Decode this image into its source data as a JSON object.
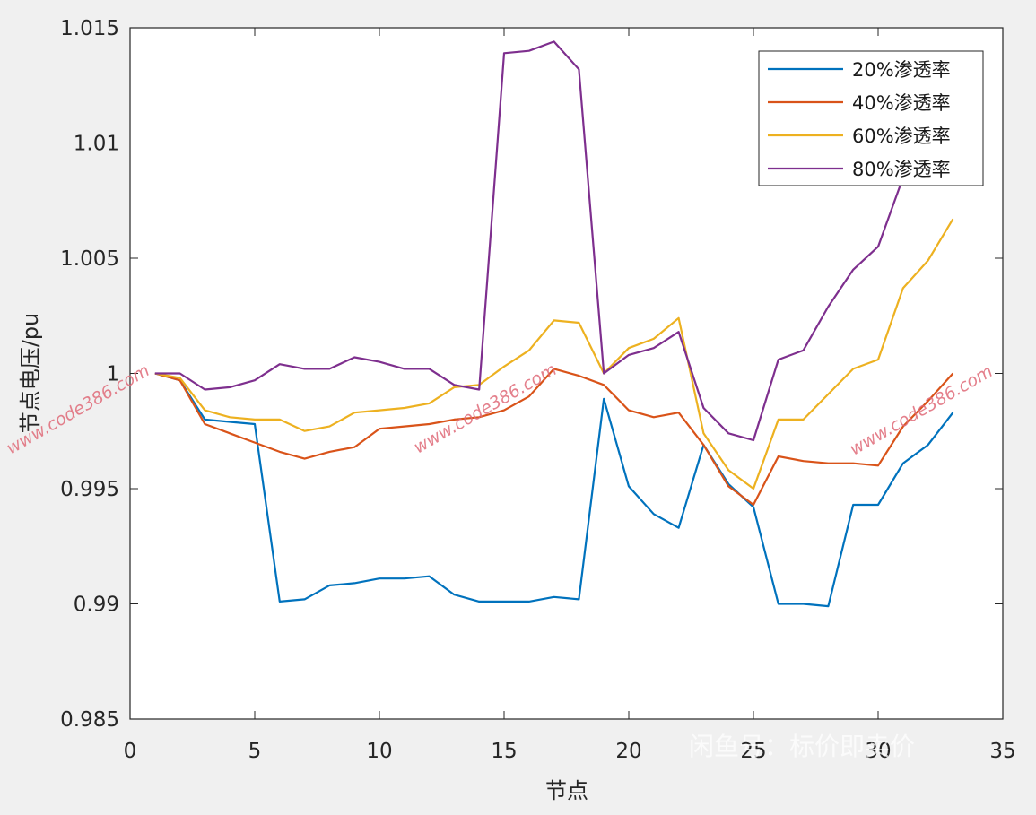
{
  "chart_data": {
    "type": "line",
    "xlabel": "节点",
    "ylabel": "节点电压/pu",
    "xlim": [
      0,
      35
    ],
    "ylim": [
      0.985,
      1.015
    ],
    "xticks": [
      "0",
      "5",
      "10",
      "15",
      "20",
      "25",
      "30",
      "35"
    ],
    "yticks": [
      "0.985",
      "0.99",
      "0.995",
      "1",
      "1.005",
      "1.01",
      "1.015"
    ],
    "grid": false,
    "legend_position": "top-right",
    "x": [
      1,
      2,
      3,
      4,
      5,
      6,
      7,
      8,
      9,
      10,
      11,
      12,
      13,
      14,
      15,
      16,
      17,
      18,
      19,
      20,
      21,
      22,
      23,
      24,
      25,
      26,
      27,
      28,
      29,
      30,
      31,
      32,
      33
    ],
    "series": [
      {
        "name": "20%渗透率",
        "color": "#0072bd",
        "values": [
          1.0,
          0.9997,
          0.998,
          0.9979,
          0.9978,
          0.9901,
          0.9902,
          0.9908,
          0.9909,
          0.9911,
          0.9911,
          0.9912,
          0.9904,
          0.9901,
          0.9901,
          0.9901,
          0.9903,
          0.9902,
          0.9989,
          0.9951,
          0.9939,
          0.9933,
          0.9969,
          0.9952,
          0.9942,
          0.99,
          0.99,
          0.9899,
          0.9943,
          0.9943,
          0.9961,
          0.9969,
          0.9983
        ]
      },
      {
        "name": "40%渗透率",
        "color": "#d95319",
        "values": [
          1.0,
          0.9997,
          0.9978,
          0.9974,
          0.997,
          0.9966,
          0.9963,
          0.9966,
          0.9968,
          0.9976,
          0.9977,
          0.9978,
          0.998,
          0.9981,
          0.9984,
          0.999,
          1.0002,
          0.9999,
          0.9995,
          0.9984,
          0.9981,
          0.9983,
          0.9969,
          0.9951,
          0.9943,
          0.9964,
          0.9962,
          0.9961,
          0.9961,
          0.996,
          0.9977,
          0.9988,
          1.0
        ]
      },
      {
        "name": "60%渗透率",
        "color": "#edb120",
        "values": [
          1.0,
          0.9998,
          0.9984,
          0.9981,
          0.998,
          0.998,
          0.9975,
          0.9977,
          0.9983,
          0.9984,
          0.9985,
          0.9987,
          0.9994,
          0.9995,
          1.0003,
          1.001,
          1.0023,
          1.0022,
          1.0,
          1.0011,
          1.0015,
          1.0024,
          0.9974,
          0.9958,
          0.995,
          0.998,
          0.998,
          0.9991,
          1.0002,
          1.0006,
          1.0037,
          1.0049,
          1.0067
        ]
      },
      {
        "name": "80%渗透率",
        "color": "#7e2f8e",
        "values": [
          1.0,
          1.0,
          0.9993,
          0.9994,
          0.9997,
          1.0004,
          1.0002,
          1.0002,
          1.0007,
          1.0005,
          1.0002,
          1.0002,
          0.9995,
          0.9993,
          1.0139,
          1.014,
          1.0144,
          1.0132,
          1.0,
          1.0008,
          1.0011,
          1.0018,
          0.9985,
          0.9974,
          0.9971,
          1.0006,
          1.001,
          1.0029,
          1.0045,
          1.0055,
          1.0085,
          1.0105,
          1.012
        ]
      }
    ]
  },
  "watermarks": [
    "www.code386.com",
    "www.code386.com",
    "www.code386.com"
  ],
  "brand_watermark": "闲鱼号：标价即卖价",
  "brand_logo": "闲鱼"
}
